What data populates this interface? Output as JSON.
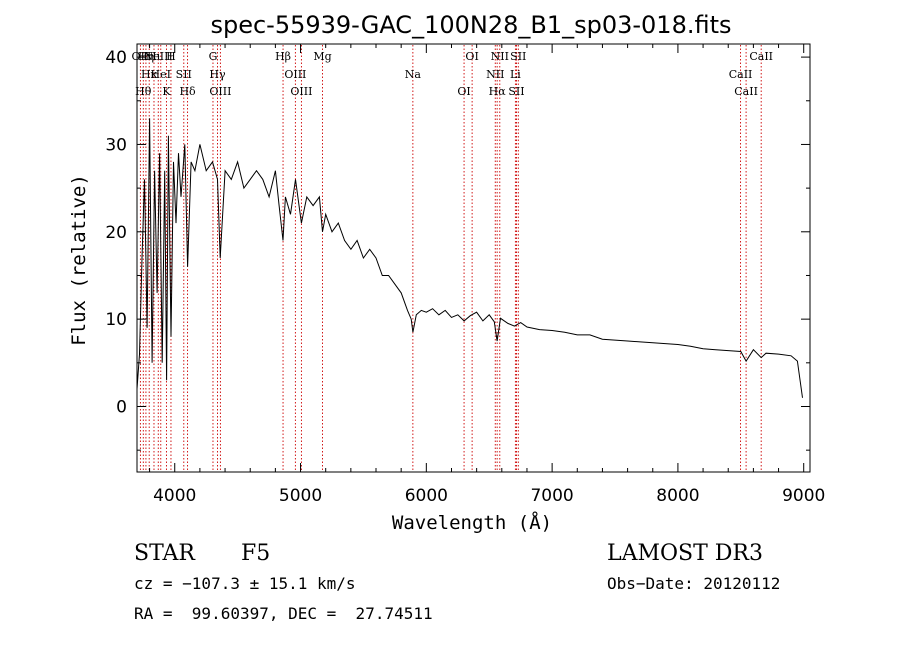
{
  "chart_data": {
    "type": "line",
    "title": "spec-55939-GAC_100N28_B1_sp03-018.fits",
    "xlabel": "Wavelength (Å)",
    "ylabel": "Flux (relative)",
    "xlim": [
      3700,
      9050
    ],
    "ylim": [
      -7.5,
      41.5
    ],
    "xticks": [
      4000,
      5000,
      6000,
      7000,
      8000,
      9000
    ],
    "yticks": [
      0,
      10,
      20,
      30,
      40
    ],
    "series": [
      {
        "name": "spectrum",
        "x": [
          3700,
          3720,
          3740,
          3760,
          3780,
          3800,
          3820,
          3840,
          3860,
          3880,
          3900,
          3920,
          3935,
          3950,
          3970,
          3990,
          4010,
          4030,
          4050,
          4080,
          4102,
          4130,
          4160,
          4200,
          4250,
          4300,
          4340,
          4361,
          4400,
          4450,
          4500,
          4550,
          4600,
          4650,
          4700,
          4750,
          4800,
          4830,
          4861,
          4880,
          4920,
          4960,
          5007,
          5050,
          5100,
          5150,
          5175,
          5200,
          5250,
          5300,
          5350,
          5400,
          5450,
          5500,
          5550,
          5600,
          5650,
          5700,
          5750,
          5800,
          5850,
          5880,
          5893,
          5920,
          5960,
          6000,
          6050,
          6100,
          6150,
          6200,
          6250,
          6300,
          6350,
          6400,
          6450,
          6500,
          6540,
          6563,
          6590,
          6620,
          6650,
          6700,
          6750,
          6800,
          6900,
          7000,
          7100,
          7200,
          7300,
          7400,
          7500,
          7600,
          7700,
          7800,
          7900,
          8000,
          8100,
          8200,
          8300,
          8400,
          8500,
          8542,
          8600,
          8662,
          8700,
          8800,
          8900,
          8950,
          8990
        ],
        "values": [
          2,
          6,
          17,
          26,
          9,
          33,
          5,
          27,
          13,
          29,
          5,
          27,
          3,
          31,
          8,
          28,
          21,
          29,
          24,
          30,
          16,
          28,
          27,
          30,
          27,
          28,
          26,
          17,
          27,
          26,
          28,
          25,
          26,
          27,
          26,
          24,
          27,
          23,
          19,
          24,
          22,
          26,
          21,
          24,
          23,
          24,
          20,
          22,
          20,
          21,
          19,
          18,
          19,
          17,
          18,
          17,
          15,
          15,
          14,
          13,
          11,
          10,
          8.5,
          10.5,
          11,
          10.8,
          11.2,
          10.5,
          11,
          10.2,
          10.5,
          9.8,
          10.4,
          10.8,
          9.8,
          10.5,
          9.7,
          7.5,
          10.1,
          9.8,
          9.5,
          9.2,
          9.6,
          9.1,
          8.8,
          8.7,
          8.5,
          8.2,
          8.2,
          7.7,
          7.6,
          7.5,
          7.4,
          7.3,
          7.2,
          7.1,
          6.9,
          6.6,
          6.5,
          6.4,
          6.3,
          5.2,
          6.5,
          5.6,
          6.1,
          6.0,
          5.8,
          5.2,
          1.0
        ]
      }
    ],
    "lines": [
      {
        "x": 3727,
        "label": "OII",
        "row": 0
      },
      {
        "x": 3750,
        "label": "Hθ",
        "row": 2
      },
      {
        "x": 3771,
        "label": "Hη",
        "row": 0
      },
      {
        "x": 3797,
        "label": "Hκ",
        "row": 1
      },
      {
        "x": 3835,
        "label": "Hι",
        "row": 0
      },
      {
        "x": 3869,
        "label": "NeIII",
        "row": 0
      },
      {
        "x": 3889,
        "label": "HeI",
        "row": 1
      },
      {
        "x": 3934,
        "label": "K",
        "row": 2
      },
      {
        "x": 3970,
        "label": "H",
        "row": 0
      },
      {
        "x": 4072,
        "label": "SII",
        "row": 1
      },
      {
        "x": 4102,
        "label": "Hδ",
        "row": 2
      },
      {
        "x": 4304,
        "label": "G",
        "row": 0
      },
      {
        "x": 4340,
        "label": "Hγ",
        "row": 1
      },
      {
        "x": 4363,
        "label": "OIII",
        "row": 2
      },
      {
        "x": 4861,
        "label": "Hβ",
        "row": 0
      },
      {
        "x": 4959,
        "label": "OIII",
        "row": 1
      },
      {
        "x": 5007,
        "label": "OIII",
        "row": 2
      },
      {
        "x": 5175,
        "label": "Mg",
        "row": 0
      },
      {
        "x": 5893,
        "label": "Na",
        "row": 1
      },
      {
        "x": 6300,
        "label": "OI",
        "row": 2
      },
      {
        "x": 6364,
        "label": "OI",
        "row": 0
      },
      {
        "x": 6548,
        "label": "NII",
        "row": 1
      },
      {
        "x": 6563,
        "label": "Hα",
        "row": 2
      },
      {
        "x": 6584,
        "label": "NII",
        "row": 0
      },
      {
        "x": 6708,
        "label": "Li",
        "row": 1
      },
      {
        "x": 6717,
        "label": "SII",
        "row": 2
      },
      {
        "x": 6731,
        "label": "SII",
        "row": 0
      },
      {
        "x": 8498,
        "label": "CaII",
        "row": 1
      },
      {
        "x": 8542,
        "label": "CaII",
        "row": 2
      },
      {
        "x": 8662,
        "label": "CaII",
        "row": 0
      }
    ]
  },
  "info": {
    "object_class": "STAR",
    "subclass": "F5",
    "survey": "LAMOST DR3",
    "cz": "cz = −107.3 ± 15.1 km/s",
    "obs_date": "Obs−Date: 20120112",
    "coords": "RA =  99.60397, DEC =  27.74511"
  }
}
